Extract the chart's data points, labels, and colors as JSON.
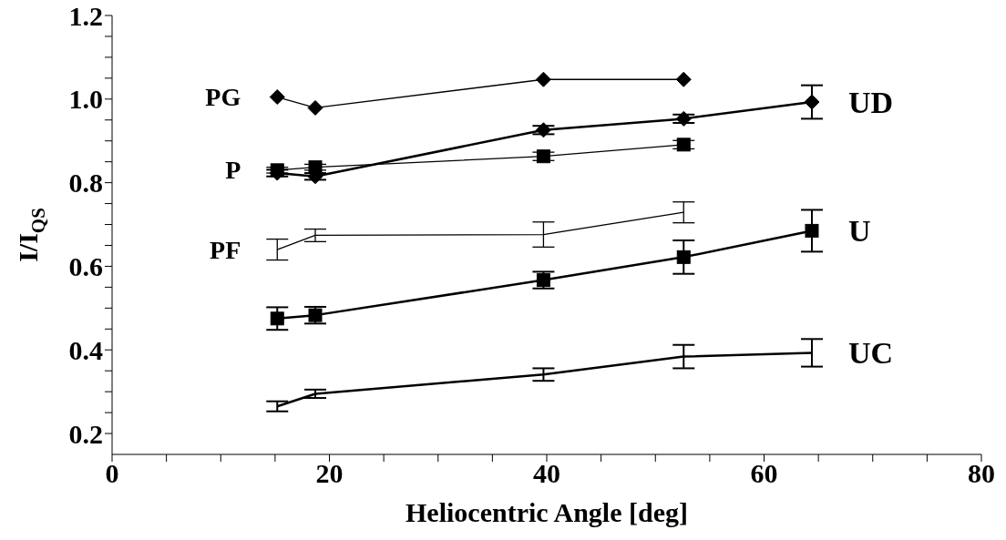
{
  "chart_data": {
    "type": "line",
    "xlabel": "Heliocentric Angle [deg]",
    "ylabel": "I/I$_{QS}$",
    "xlim": [
      0,
      80
    ],
    "xticks": [
      0,
      {
        "value": 5,
        "label": null
      },
      {
        "value": 10,
        "label": null
      },
      {
        "value": 15,
        "label": null
      },
      20,
      {
        "value": 25,
        "label": null
      },
      {
        "value": 30,
        "label": null
      },
      {
        "value": 35,
        "label": null
      },
      40,
      {
        "value": 45,
        "label": null
      },
      {
        "value": 50,
        "label": null
      },
      {
        "value": 55,
        "label": null
      },
      60,
      {
        "value": 65,
        "label": null
      },
      {
        "value": 70,
        "label": null
      },
      {
        "value": 75,
        "label": null
      },
      80
    ],
    "ylim": [
      0.15,
      1.2
    ],
    "yticks": [
      0.2,
      {
        "value": 0.25,
        "label": null
      },
      {
        "value": 0.3,
        "label": null
      },
      {
        "value": 0.35,
        "label": null
      },
      0.4,
      {
        "value": 0.45,
        "label": null
      },
      {
        "value": 0.5,
        "label": null
      },
      {
        "value": 0.55,
        "label": null
      },
      0.6,
      {
        "value": 0.65,
        "label": null
      },
      {
        "value": 0.7,
        "label": null
      },
      {
        "value": 0.75,
        "label": null
      },
      0.8,
      {
        "value": 0.85,
        "label": null
      },
      {
        "value": 0.9,
        "label": null
      },
      {
        "value": 0.95,
        "label": null
      },
      {
        "value": 1.0,
        "label": "1.0"
      },
      {
        "value": 1.05,
        "label": null
      },
      {
        "value": 1.1,
        "label": null
      },
      {
        "value": 1.15,
        "label": null
      },
      1.2
    ],
    "grid": false,
    "legend": false,
    "line_style": "solid",
    "series": [
      {
        "name": "PG",
        "color": "#000000",
        "marker": "diamond",
        "x": [
          15.2,
          18.7,
          39.7,
          52.6
        ],
        "values": [
          1.005,
          0.979,
          1.047,
          1.047
        ]
      },
      {
        "name": "UD",
        "color": "#000000",
        "marker": "diamond",
        "x": [
          15.2,
          18.7,
          39.7,
          52.6,
          64.4
        ],
        "values": [
          0.823,
          0.815,
          0.926,
          0.953,
          0.993
        ],
        "errors": [
          0.008,
          0.008,
          0.01,
          0.01,
          0.04
        ]
      },
      {
        "name": "P",
        "color": "#000000",
        "marker": "square",
        "x": [
          15.2,
          18.7,
          39.7,
          52.6
        ],
        "values": [
          0.83,
          0.837,
          0.863,
          0.891
        ],
        "errors": [
          0.007,
          0.007,
          0.01,
          0.01
        ]
      },
      {
        "name": "PF",
        "color": "#000000",
        "marker": "none",
        "x": [
          15.2,
          18.7,
          39.7,
          52.6
        ],
        "values": [
          0.64,
          0.674,
          0.676,
          0.729
        ],
        "errors": [
          0.025,
          0.015,
          0.03,
          0.025
        ]
      },
      {
        "name": "U",
        "color": "#000000",
        "marker": "square",
        "x": [
          15.2,
          18.7,
          39.7,
          52.6,
          64.4
        ],
        "values": [
          0.475,
          0.483,
          0.567,
          0.622,
          0.685
        ],
        "errors": [
          0.027,
          0.02,
          0.02,
          0.04,
          0.05
        ]
      },
      {
        "name": "UC",
        "color": "#000000",
        "marker": "none",
        "x": [
          15.2,
          18.7,
          39.7,
          52.6,
          64.4
        ],
        "values": [
          0.265,
          0.295,
          0.341,
          0.384,
          0.393
        ],
        "errors": [
          0.012,
          0.01,
          0.015,
          0.028,
          0.033
        ]
      }
    ]
  }
}
